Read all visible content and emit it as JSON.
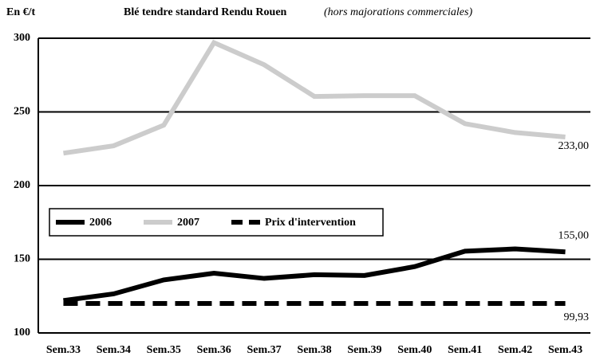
{
  "chart_data": {
    "type": "line",
    "title": "Blé tendre standard Rendu Rouen",
    "subtitle": "(hors majorations commerciales)",
    "y_label": "En €/t",
    "categories": [
      "Sem.33",
      "Sem.34",
      "Sem.35",
      "Sem.36",
      "Sem.37",
      "Sem.38",
      "Sem.39",
      "Sem.40",
      "Sem.41",
      "Sem.42",
      "Sem.43"
    ],
    "series": [
      {
        "name": "2006",
        "color": "#000000",
        "dashed": false,
        "values": [
          122,
          126.5,
          136,
          140.5,
          137,
          139.5,
          139,
          145,
          155.5,
          157,
          155
        ],
        "value_labels": [
          null,
          null,
          null,
          null,
          null,
          null,
          null,
          null,
          null,
          null,
          "155,00"
        ]
      },
      {
        "name": "2007",
        "color": "#cccccc",
        "dashed": false,
        "values": [
          222,
          227,
          241,
          297,
          282,
          260.5,
          261,
          261,
          242,
          236,
          233
        ],
        "value_labels": [
          null,
          null,
          null,
          null,
          null,
          null,
          null,
          null,
          null,
          null,
          "233,00"
        ]
      },
      {
        "name": "Prix d'intervention",
        "color": "#000000",
        "dashed": true,
        "values": [
          120,
          120,
          120,
          120,
          120,
          120,
          120,
          120,
          120,
          120,
          120
        ]
      }
    ],
    "annotation": "99,93",
    "ylim": [
      100,
      300
    ],
    "yticks": [
      100,
      150,
      200,
      250,
      300
    ],
    "grid": true
  }
}
